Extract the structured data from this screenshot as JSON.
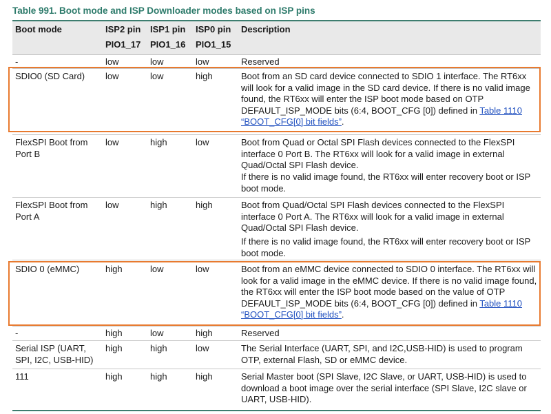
{
  "caption": "Table 991.  Boot mode and ISP Downloader modes based on ISP pins",
  "headers": {
    "boot_mode": "Boot mode",
    "isp2": "ISP2 pin",
    "isp2_sub": "PIO1_17",
    "isp1": "ISP1 pin",
    "isp1_sub": "PIO1_16",
    "isp0": "ISP0 pin",
    "isp0_sub": "PIO1_15",
    "description": "Description"
  },
  "rows": [
    {
      "mode": "-",
      "isp2": "low",
      "isp1": "low",
      "isp0": "low",
      "desc": "Reserved"
    },
    {
      "mode": "SDIO0 (SD Card)",
      "isp2": "low",
      "isp1": "low",
      "isp0": "high",
      "desc": "Boot from an SD card device connected to SDIO 1 interface. The RT6xx will look for a valid image in the SD card device. If there is no valid image found, the RT6xx will enter the ISP boot mode based on OTP DEFAULT_ISP_MODE bits (6:4, BOOT_CFG [0]) defined in ",
      "link": "Table 1110 “BOOT_CFG[0] bit fields”",
      "desc_end": "."
    },
    {
      "mode": "FlexSPI Boot from Port B",
      "isp2": "low",
      "isp1": "high",
      "isp0": "low",
      "desc": "Boot from Quad or Octal SPI Flash devices connected to the FlexSPI interface 0 Port B. The RT6xx will look for a valid image in external Quad/Octal SPI Flash device.",
      "desc2": "If there is no valid image found, the RT6xx will enter recovery boot or ISP boot mode."
    },
    {
      "mode": "FlexSPI Boot from Port A",
      "isp2": "low",
      "isp1": "high",
      "isp0": "high",
      "desc": "Boot from Quad/Octal SPI Flash devices connected to the FlexSPI interface 0 Port A. The RT6xx will look for a valid image in external Quad/Octal SPI Flash device.",
      "desc2": "If there is no valid image found, the RT6xx will enter recovery boot or ISP boot mode."
    },
    {
      "mode": "SDIO 0 (eMMC)",
      "isp2": "high",
      "isp1": "low",
      "isp0": "low",
      "desc": "Boot from an eMMC device connected to SDIO 0 interface. The RT6xx will look for a valid image in the eMMC device. If there is no valid image found, the RT6xx will enter the ISP boot mode based on the value of OTP DEFAULT_ISP_MODE bits (6:4, BOOT_CFG [0]) defined in ",
      "link": "Table 1110 “BOOT_CFG[0] bit fields”",
      "desc_end": "."
    },
    {
      "mode": "-",
      "isp2": "high",
      "isp1": "low",
      "isp0": "high",
      "desc": "Reserved"
    },
    {
      "mode": "Serial ISP (UART, SPI, I2C, USB-HID)",
      "isp2": "high",
      "isp1": "high",
      "isp0": "low",
      "desc": "The Serial Interface (UART, SPI, and I2C,USB-HID) is used to program OTP, external Flash, SD or eMMC device."
    },
    {
      "mode": "111",
      "isp2": "high",
      "isp1": "high",
      "isp0": "high",
      "desc": "Serial Master boot (SPI Slave, I2C Slave, or UART, USB-HID) is used to download a boot image over the serial interface (SPI Slave, I2C slave or UART, USB-HID)."
    }
  ],
  "highlight_color": "#e87a2f",
  "rule_color": "#3d7d6f",
  "caption_color": "#2c7a6a"
}
